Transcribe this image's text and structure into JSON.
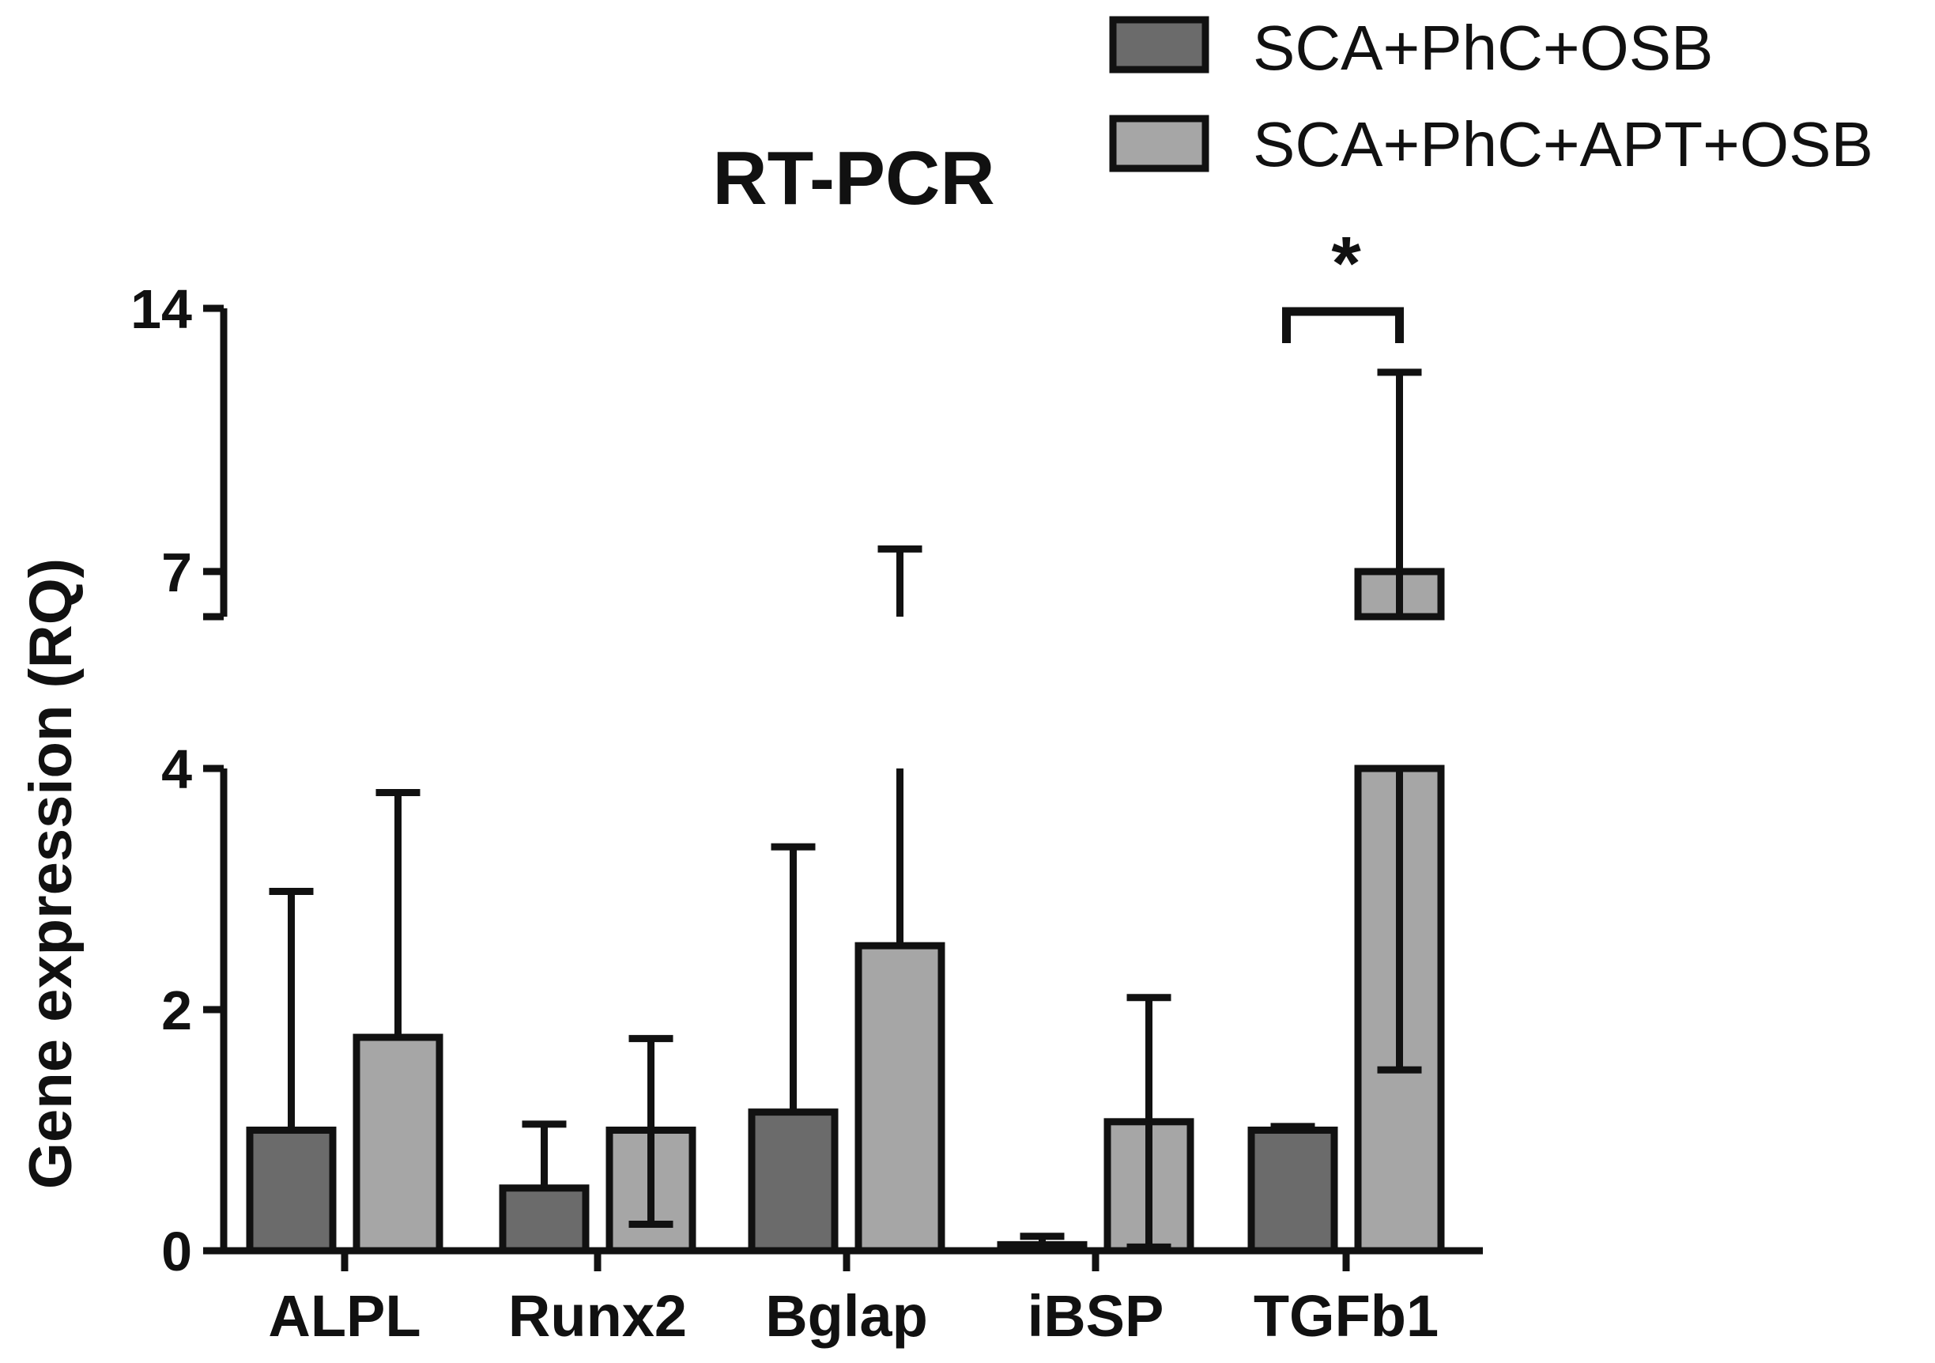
{
  "chart_data": {
    "type": "bar",
    "title": "RT-PCR",
    "ylabel": "Gene expression (RQ)",
    "xlabel": "",
    "categories": [
      "ALPL",
      "Runx2",
      "Bglap",
      "iBSP",
      "TGFb1"
    ],
    "y_axis": {
      "scale": "segmented",
      "segments": [
        [
          0,
          4
        ],
        [
          5.8,
          14
        ]
      ],
      "ticks": [
        {
          "value": 0,
          "label": "0"
        },
        {
          "value": 2,
          "label": "2"
        },
        {
          "value": 4,
          "label": "4"
        },
        {
          "value": 7,
          "label": "7"
        },
        {
          "value": 14,
          "label": "14"
        }
      ]
    },
    "series": [
      {
        "name": "SCA+PhC+OSB",
        "color": "#6b6b6b",
        "values": [
          1.0,
          0.52,
          1.15,
          0.05,
          1.0
        ],
        "error_upper": [
          2.98,
          1.05,
          3.35,
          0.12,
          1.03
        ]
      },
      {
        "name": "SCA+PhC+APT+OSB",
        "color": "#a6a6a6",
        "values": [
          1.77,
          1.0,
          2.53,
          1.07,
          7.0
        ],
        "error_upper": [
          3.8,
          1.76,
          7.6,
          2.1,
          12.3
        ],
        "error_lower": [
          null,
          0.22,
          null,
          0.03,
          1.5
        ]
      }
    ],
    "annotations": [
      {
        "text": "*",
        "category": "TGFb1"
      }
    ],
    "legend": "top-right",
    "grid": false
  }
}
